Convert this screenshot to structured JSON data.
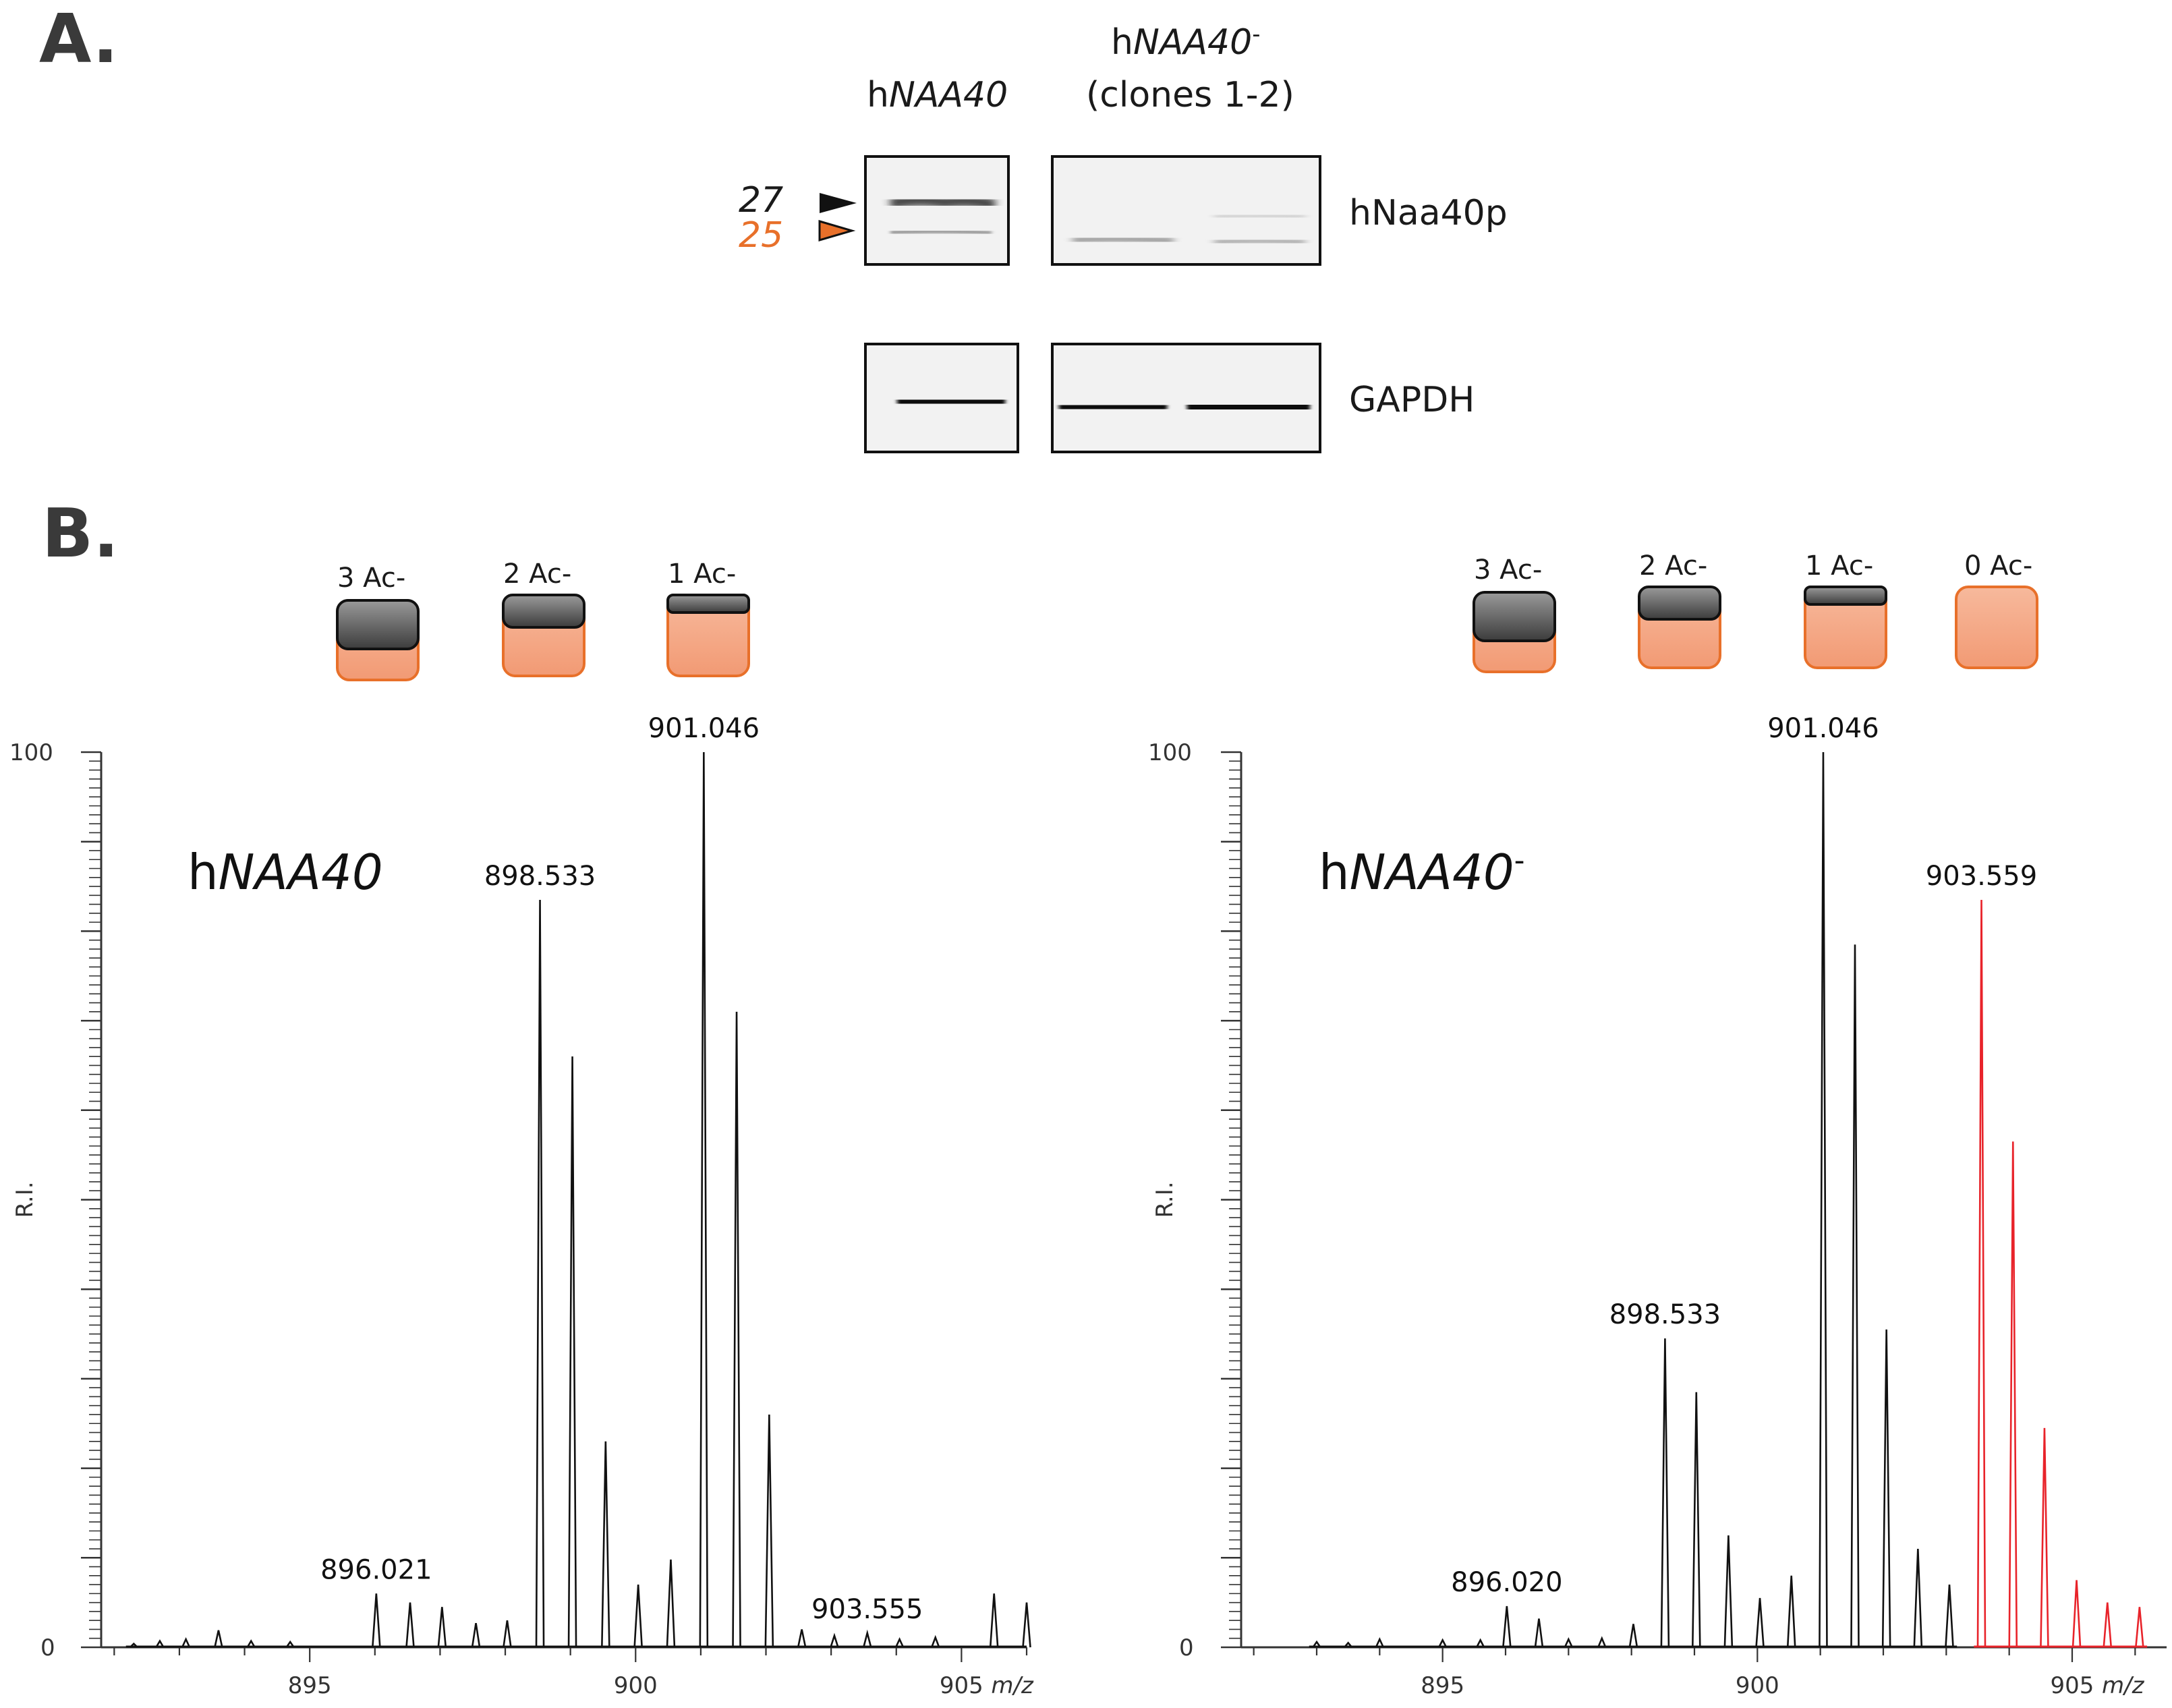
{
  "panel_a": {
    "letter": "A.",
    "col1_label_prefix": "h",
    "col1_label_gene": "NAA40",
    "col2_label_prefix": "h",
    "col2_label_gene": "NAA40",
    "col2_label_sup": "-",
    "col2_sublabel": "(clones 1-2)",
    "marker_27": "27",
    "marker_25": "25",
    "marker_27_color": "#111111",
    "marker_25_color": "#e8702a",
    "row1_label": "hNaa40p",
    "row2_label": "GAPDH"
  },
  "panel_b": {
    "letter": "B.",
    "box_colors": {
      "acetyl": "#6d6d6d",
      "unmod": "#f4a98a",
      "border": "#e8702a"
    },
    "left_boxes": [
      "3 Ac-",
      "2 Ac-",
      "1 Ac-"
    ],
    "right_boxes": [
      "3 Ac-",
      "2 Ac-",
      "1 Ac-",
      "0 Ac-"
    ]
  },
  "chart_data": [
    {
      "type": "line",
      "title_prefix": "h",
      "title_gene": "NAA40",
      "title_sup": "",
      "ylabel": "R.I.",
      "xlabel": "m/z",
      "y_max_label": "100",
      "y_min_label": "0",
      "xlim": [
        891.8,
        906.0
      ],
      "ylim": [
        0,
        100
      ],
      "x_ticks": [
        895,
        900,
        905
      ],
      "x_tick_labels": [
        "895",
        "900",
        "905"
      ],
      "series": [
        {
          "name": "hNAA40",
          "color": "#111111",
          "peaks": [
            [
              892.3,
              0.4
            ],
            [
              892.7,
              0.7
            ],
            [
              893.1,
              0.9
            ],
            [
              893.6,
              1.9
            ],
            [
              894.1,
              0.7
            ],
            [
              894.7,
              0.6
            ],
            [
              896.021,
              6.0
            ],
            [
              896.54,
              5.0
            ],
            [
              897.03,
              4.5
            ],
            [
              897.55,
              2.7
            ],
            [
              898.03,
              3.0
            ],
            [
              898.533,
              83.5
            ],
            [
              899.03,
              66.0
            ],
            [
              899.54,
              23.0
            ],
            [
              900.04,
              7.0
            ],
            [
              900.54,
              9.8
            ],
            [
              901.046,
              100.0
            ],
            [
              901.55,
              71.0
            ],
            [
              902.05,
              26.0
            ],
            [
              902.55,
              2.0
            ],
            [
              903.05,
              1.3
            ],
            [
              903.555,
              1.6
            ],
            [
              904.05,
              0.9
            ],
            [
              904.6,
              1.1
            ],
            [
              905.5,
              6.0
            ],
            [
              906.0,
              5.0
            ]
          ],
          "labels": [
            {
              "x": 896.021,
              "y": 6.0,
              "text": "896.021"
            },
            {
              "x": 898.533,
              "y": 83.5,
              "text": "898.533"
            },
            {
              "x": 901.046,
              "y": 100.0,
              "text": "901.046"
            },
            {
              "x": 903.555,
              "y": 1.6,
              "text": "903.555"
            }
          ]
        }
      ]
    },
    {
      "type": "line",
      "title_prefix": "h",
      "title_gene": "NAA40",
      "title_sup": "-",
      "ylabel": "R.I.",
      "xlabel": "m/z",
      "y_max_label": "100",
      "y_min_label": "0",
      "xlim": [
        891.8,
        906.5
      ],
      "ylim": [
        0,
        100
      ],
      "x_ticks": [
        895,
        900,
        905
      ],
      "x_tick_labels": [
        "895",
        "900",
        "905"
      ],
      "series": [
        {
          "name": "hNAA40- (acetylated)",
          "color": "#111111",
          "peaks": [
            [
              893.0,
              0.6
            ],
            [
              893.5,
              0.5
            ],
            [
              894.0,
              0.9
            ],
            [
              895.0,
              0.8
            ],
            [
              895.6,
              0.8
            ],
            [
              896.02,
              4.6
            ],
            [
              896.53,
              3.2
            ],
            [
              897.0,
              0.9
            ],
            [
              897.53,
              1.0
            ],
            [
              898.03,
              2.6
            ],
            [
              898.533,
              34.5
            ],
            [
              899.03,
              28.5
            ],
            [
              899.54,
              12.5
            ],
            [
              900.04,
              5.5
            ],
            [
              900.54,
              8.0
            ],
            [
              901.046,
              100.0
            ],
            [
              901.55,
              78.5
            ],
            [
              902.05,
              35.5
            ],
            [
              902.55,
              11.0
            ],
            [
              903.05,
              7.0
            ]
          ],
          "labels": [
            {
              "x": 896.02,
              "y": 4.6,
              "text": "896.020"
            },
            {
              "x": 898.533,
              "y": 34.5,
              "text": "898.533"
            },
            {
              "x": 901.046,
              "y": 100.0,
              "text": "901.046"
            }
          ]
        },
        {
          "name": "hNAA40- (0 Ac)",
          "color": "#e8232a",
          "peaks": [
            [
              903.559,
              83.5
            ],
            [
              904.06,
              56.5
            ],
            [
              904.56,
              24.5
            ],
            [
              905.07,
              7.5
            ],
            [
              905.56,
              5.0
            ],
            [
              906.07,
              4.5
            ]
          ],
          "labels": [
            {
              "x": 903.559,
              "y": 83.5,
              "text": "903.559"
            }
          ]
        }
      ]
    }
  ]
}
